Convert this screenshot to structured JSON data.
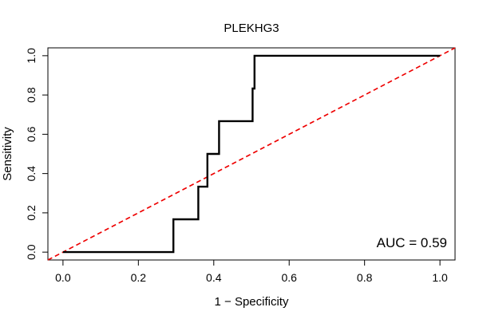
{
  "chart_data": {
    "type": "line",
    "title": "PLEKHG3",
    "xlabel": "1 − Specificity",
    "ylabel": "Sensitivity",
    "xlim": [
      -0.04,
      1.04
    ],
    "ylim": [
      -0.04,
      1.04
    ],
    "x_ticks": [
      0.0,
      0.2,
      0.4,
      0.6,
      0.8,
      1.0
    ],
    "x_tick_labels": [
      "0.0",
      "0.2",
      "0.4",
      "0.6",
      "0.8",
      "1.0"
    ],
    "y_ticks": [
      0.0,
      0.2,
      0.4,
      0.6,
      0.8,
      1.0
    ],
    "y_tick_labels": [
      "0.0",
      "0.2",
      "0.4",
      "0.6",
      "0.8",
      "1.0"
    ],
    "grid": false,
    "series": [
      {
        "name": "ROC",
        "color": "#000000",
        "style": "solid",
        "x": [
          0.0,
          0.293,
          0.293,
          0.359,
          0.359,
          0.383,
          0.383,
          0.414,
          0.414,
          0.503,
          0.503,
          0.508,
          0.508,
          1.0
        ],
        "y": [
          0.0,
          0.0,
          0.167,
          0.167,
          0.333,
          0.333,
          0.5,
          0.5,
          0.667,
          0.667,
          0.833,
          0.833,
          1.0,
          1.0
        ]
      },
      {
        "name": "Chance",
        "color": "#ee0000",
        "style": "dashed",
        "x": [
          -0.04,
          1.04
        ],
        "y": [
          -0.04,
          1.04
        ]
      }
    ],
    "annotation": "AUC = 0.59"
  }
}
